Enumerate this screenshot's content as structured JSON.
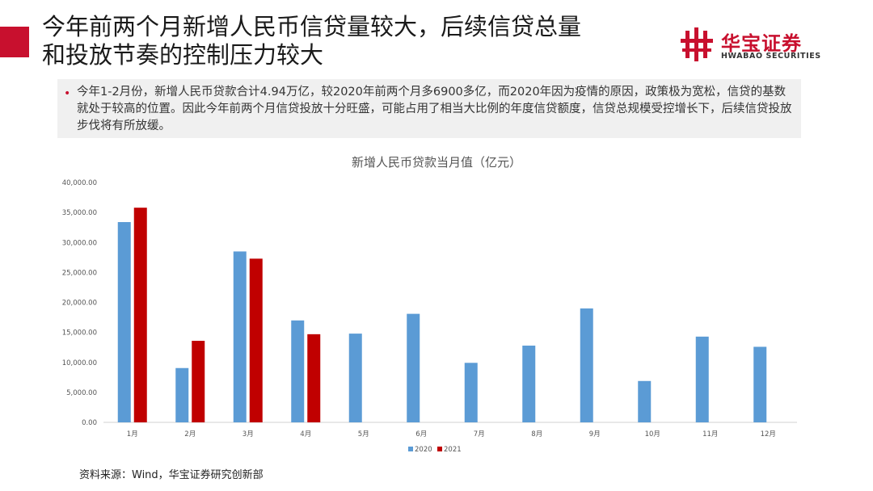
{
  "header": {
    "title_line1": "今年前两个月新增人民币信贷量较大，后续信贷总量",
    "title_line2": "和投放节奏的控制压力较大"
  },
  "logo": {
    "cn": "华宝证券",
    "en": "HWABAO SECURITIES",
    "mark": "hwabao-logo-icon"
  },
  "bullet": {
    "text": "今年1-2月份，新增人民币贷款合计4.94万亿，较2020年前两个月多6900多亿，而2020年因为疫情的原因，政策极为宽松，信贷的基数就处于较高的位置。因此今年前两个月信贷投放十分旺盛，可能占用了相当大比例的年度信贷额度，信贷总规模受控增长下，后续信贷投放步伐将有所放缓。"
  },
  "chart_data": {
    "type": "bar",
    "title": "新增人民币贷款当月值（亿元）",
    "categories": [
      "1月",
      "2月",
      "3月",
      "4月",
      "5月",
      "6月",
      "7月",
      "8月",
      "9月",
      "10月",
      "11月",
      "12月"
    ],
    "series": [
      {
        "name": "2020",
        "color": "#5b9bd5",
        "values": [
          33400,
          9057,
          28500,
          17000,
          14800,
          18100,
          9927,
          12800,
          19000,
          6898,
          14300,
          12600
        ]
      },
      {
        "name": "2021",
        "color": "#c00000",
        "values": [
          35800,
          13600,
          27300,
          14700,
          null,
          null,
          null,
          null,
          null,
          null,
          null,
          null
        ]
      }
    ],
    "ylim": [
      0,
      40000
    ],
    "yticks": [
      0,
      5000,
      10000,
      15000,
      20000,
      25000,
      30000,
      35000,
      40000
    ],
    "ytick_labels": [
      "0.00",
      "5,000.00",
      "10,000.00",
      "15,000.00",
      "20,000.00",
      "25,000.00",
      "30,000.00",
      "35,000.00",
      "40,000.00"
    ],
    "grid": false,
    "legend_position": "bottom"
  },
  "footer": {
    "source": "资料来源：Wind，华宝证券研究创新部"
  }
}
